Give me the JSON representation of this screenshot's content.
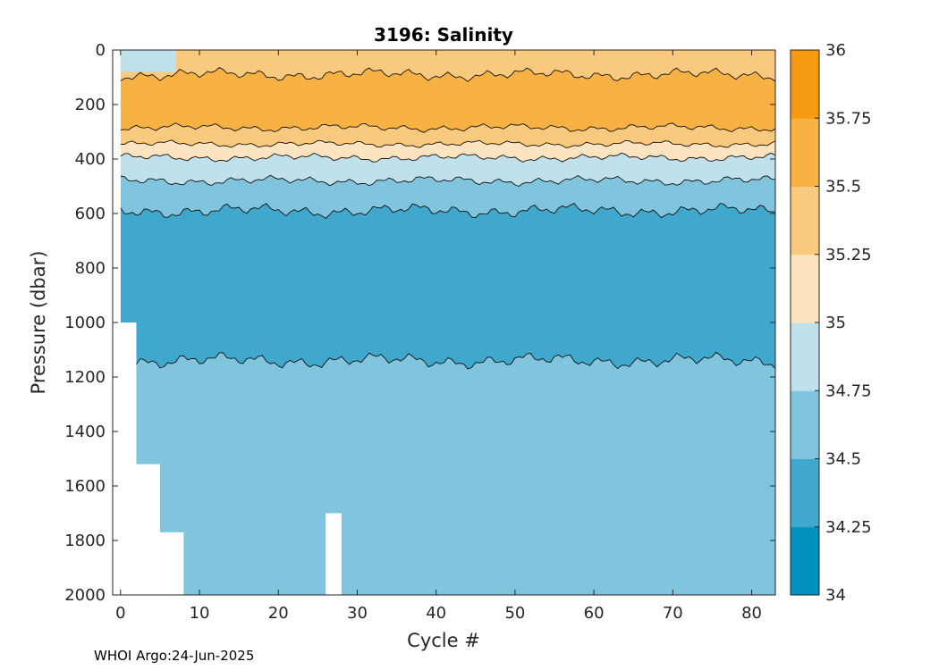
{
  "chart_data": {
    "type": "heatmap",
    "title": "3196:  Salinity",
    "xlabel": "Cycle #",
    "ylabel": "Pressure (dbar)",
    "xlim": [
      -1,
      83
    ],
    "ylim": [
      2000,
      0
    ],
    "xticks": [
      0,
      10,
      20,
      30,
      40,
      50,
      60,
      70,
      80
    ],
    "yticks": [
      0,
      200,
      400,
      600,
      800,
      1000,
      1200,
      1400,
      1600,
      1800,
      2000
    ],
    "colorbar": {
      "limits": [
        34,
        36
      ],
      "ticks": [
        "34",
        "34.25",
        "34.5",
        "34.75",
        "35",
        "35.25",
        "35.5",
        "35.75",
        "36"
      ],
      "colors": [
        "#0090c0",
        "#40a8cc",
        "#80c4de",
        "#c0e0ec",
        "#fbe4bf",
        "#f9c97d",
        "#f8b143",
        "#f69a12"
      ]
    },
    "contour_levels_pressure_dbar": {
      "35.5_top": 90,
      "35.5_bottom": 285,
      "35.25_bottom": 345,
      "35_bottom": 395,
      "34.75_bottom": 480,
      "34.5_top": 590,
      "34.5_bottom": 1140
    },
    "data_extent": {
      "cycles": [
        0,
        2,
        5,
        8,
        26,
        28,
        83
      ],
      "max_pressure_dbar": [
        1000,
        1520,
        1770,
        2000,
        1700,
        2000,
        2000
      ]
    },
    "grid": false
  },
  "credit": "WHOI Argo:24-Jun-2025"
}
